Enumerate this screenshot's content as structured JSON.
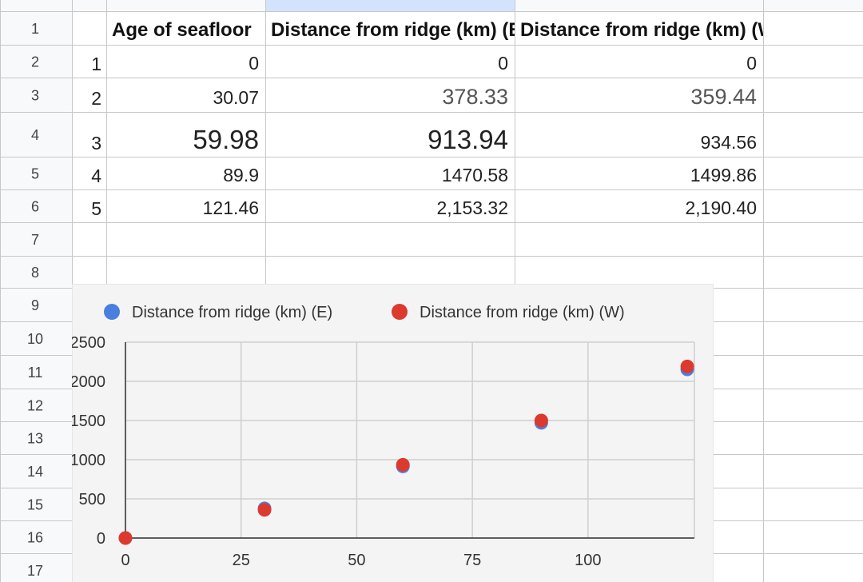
{
  "sheet": {
    "row_numbers": [
      1,
      2,
      3,
      4,
      5,
      6,
      7,
      8,
      9,
      10,
      11,
      12,
      13,
      14,
      15,
      16,
      17
    ],
    "header": [
      "Age of seafloor",
      "Distance from ridge (km) (E)",
      "Distance from ridge (km) (W)"
    ],
    "rows": [
      {
        "index": 1,
        "cells": [
          "0",
          "0",
          "0"
        ]
      },
      {
        "index": 2,
        "cells": [
          "30.07",
          "378.33",
          "359.44"
        ]
      },
      {
        "index": 3,
        "cells": [
          "59.98",
          "913.94",
          "934.56"
        ]
      },
      {
        "index": 4,
        "cells": [
          "89.9",
          "1470.58",
          "1499.86"
        ]
      },
      {
        "index": 5,
        "cells": [
          "121.46",
          "2,153.32",
          "2,190.40"
        ]
      }
    ]
  },
  "chart_data": {
    "type": "scatter",
    "legend": "top",
    "grid": true,
    "x": [
      0,
      30.07,
      59.98,
      89.9,
      121.46
    ],
    "series": [
      {
        "name": "Distance from ridge (km) (E)",
        "color": "#4a7fe0",
        "values": [
          0,
          378.33,
          913.94,
          1470.58,
          2153.32
        ]
      },
      {
        "name": "Distance from ridge (km) (W)",
        "color": "#dc3a2f",
        "values": [
          0,
          359.44,
          934.56,
          1499.86,
          2190.4
        ]
      }
    ],
    "xlim": [
      0,
      123
    ],
    "xticks": [
      0,
      25,
      50,
      75,
      100
    ],
    "ylim": [
      0,
      2500
    ],
    "yticks": [
      0,
      500,
      1000,
      1500,
      2000,
      2500
    ]
  }
}
